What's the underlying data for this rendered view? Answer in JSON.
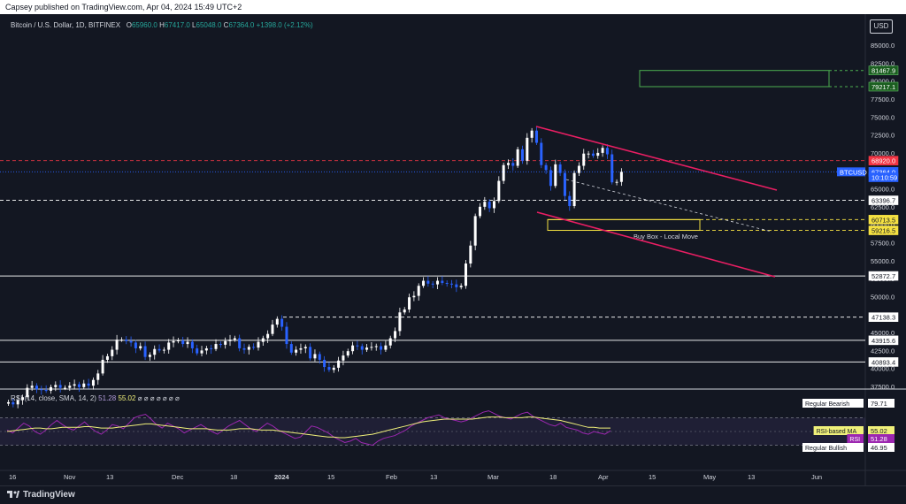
{
  "header": {
    "published": "Capsey published on TradingView.com, Apr 04, 2024 15:49 UTC+2"
  },
  "currency_button": "USD",
  "legend": {
    "symbol": "Bitcoin / U.S. Dollar, 1D, BITFINEX",
    "o_label": "O",
    "o": "65960.0",
    "h_label": "H",
    "h": "67417.0",
    "l_label": "L",
    "l": "65048.0",
    "c_label": "C",
    "c": "67364.0",
    "change": "+1398.0 (+2.12%)"
  },
  "rsi_legend": {
    "label": "RSI (14, close, SMA, 14, 2)",
    "rsi": "51.28",
    "ma": "55.02",
    "extras": "⌀ ⌀ ⌀ ⌀ ⌀ ⌀ ⌀"
  },
  "brand": "TradingView",
  "annotations": {
    "buy_box": "Buy Box - Local Move"
  },
  "price_axis": {
    "ticks": [
      "85000.0",
      "82500.0",
      "80000.0",
      "77500.0",
      "75000.0",
      "72500.0",
      "70000.0",
      "67500.0",
      "65000.0",
      "62500.0",
      "60000.0",
      "57500.0",
      "55000.0",
      "52500.0",
      "50000.0",
      "47500.0",
      "45000.0",
      "42500.0",
      "40000.0",
      "37500.0"
    ],
    "tags": [
      {
        "text": "81467.9",
        "value": 81467.9,
        "bg": "#1b5e20",
        "fg": "#ffffff",
        "border": "#66bb6a"
      },
      {
        "text": "79217.1",
        "value": 79217.1,
        "bg": "#1b5e20",
        "fg": "#ffffff",
        "border": "#66bb6a"
      },
      {
        "text": "68920.0",
        "value": 68920.0,
        "bg": "#f23645",
        "fg": "#ffffff",
        "border": "#f23645"
      },
      {
        "text": "67364.0",
        "value": 67364.0,
        "bg": "#2962ff",
        "fg": "#ffffff",
        "border": "#2962ff"
      },
      {
        "text": "10:10:59",
        "value": 66600.0,
        "bg": "#2962ff",
        "fg": "#ffffff",
        "border": "#2962ff"
      },
      {
        "text": "63396.7",
        "value": 63396.7,
        "bg": "#ffffff",
        "fg": "#131722",
        "border": "#ffffff"
      },
      {
        "text": "60713.5",
        "value": 60713.5,
        "bg": "#f5e142",
        "fg": "#131722",
        "border": "#f5e142"
      },
      {
        "text": "59216.5",
        "value": 59216.5,
        "bg": "#f5e142",
        "fg": "#131722",
        "border": "#f5e142"
      },
      {
        "text": "52872.7",
        "value": 52872.7,
        "bg": "#ffffff",
        "fg": "#131722",
        "border": "#ffffff"
      },
      {
        "text": "47138.3",
        "value": 47138.3,
        "bg": "#ffffff",
        "fg": "#131722",
        "border": "#ffffff"
      },
      {
        "text": "43915.6",
        "value": 43915.6,
        "bg": "#ffffff",
        "fg": "#131722",
        "border": "#ffffff"
      },
      {
        "text": "40893.4",
        "value": 40893.4,
        "bg": "#ffffff",
        "fg": "#131722",
        "border": "#ffffff"
      }
    ],
    "symbol_tag": "BTCUSD"
  },
  "rsi_axis": {
    "tags": [
      {
        "text": "79.71",
        "label": "Regular Bearish",
        "value": 79.71,
        "bg": "#ffffff",
        "fg": "#131722"
      },
      {
        "text": "55.02",
        "label": "RSI-based MA",
        "value": 55.02,
        "bg": "#f0f07a",
        "fg": "#131722"
      },
      {
        "text": "51.28",
        "label": "RSI",
        "value": 51.28,
        "bg": "#9c27b0",
        "fg": "#ffffff"
      },
      {
        "text": "46.95",
        "label": "Regular Bullish",
        "value": 46.95,
        "bg": "#ffffff",
        "fg": "#131722"
      }
    ]
  },
  "time_axis": [
    "16",
    "Nov",
    "13",
    "Dec",
    "18",
    "2024",
    "15",
    "Feb",
    "13",
    "Mar",
    "18",
    "Apr",
    "15",
    "May",
    "13",
    "Jun"
  ],
  "chart_data": {
    "type": "candlestick",
    "symbol": "Bitcoin / U.S. Dollar",
    "timeframe": "1D",
    "exchange": "BITFINEX",
    "price_range": [
      36800,
      87600
    ],
    "up_color": "#ffffff",
    "down_color": "#2962ff",
    "candles_approx_close": [
      35300,
      35000,
      35600,
      36000,
      37300,
      37600,
      37100,
      37000,
      36900,
      37400,
      37700,
      37300,
      37300,
      37600,
      37800,
      37400,
      37900,
      37600,
      38400,
      39300,
      41200,
      41700,
      42600,
      44000,
      44000,
      43800,
      43600,
      42800,
      43100,
      41600,
      41900,
      42700,
      42500,
      42600,
      43600,
      43800,
      43900,
      43400,
      43700,
      42800,
      42100,
      42500,
      42800,
      42700,
      43400,
      43300,
      43800,
      44000,
      44200,
      42800,
      42600,
      43000,
      42900,
      43700,
      44200,
      44800,
      46100,
      46900,
      45800,
      43400,
      42200,
      42600,
      42800,
      43000,
      41400,
      42000,
      41200,
      40200,
      39800,
      40100,
      41100,
      41800,
      42400,
      43200,
      43100,
      42600,
      42900,
      43000,
      43100,
      42600,
      43200,
      44200,
      45200,
      47800,
      48200,
      49900,
      50100,
      51500,
      52200,
      51800,
      51700,
      52200,
      51900,
      51800,
      51700,
      51300,
      51500,
      54600,
      57100,
      61200,
      62500,
      63200,
      62300,
      63300,
      66100,
      68300,
      68600,
      68200,
      70500,
      68900,
      72100,
      73100,
      71400,
      68300,
      67600,
      65400,
      68400,
      67200,
      64000,
      62600,
      67200,
      68200,
      69900,
      69900,
      69600,
      70000,
      70700,
      69800,
      65900,
      65960,
      67364
    ],
    "horizontal_levels": [
      {
        "value": 68920.0,
        "style": "dashed",
        "color": "#f23645"
      },
      {
        "value": 63396.7,
        "style": "dashed",
        "color": "#ffffff"
      },
      {
        "value": 60713.5,
        "style": "dashed",
        "color": "#f5e142"
      },
      {
        "value": 59216.5,
        "style": "dashed",
        "color": "#f5e142"
      },
      {
        "value": 52872.7,
        "style": "solid",
        "color": "#ffffff"
      },
      {
        "value": 47138.3,
        "style": "dashed",
        "color": "#ffffff"
      },
      {
        "value": 43915.6,
        "style": "solid",
        "color": "#ffffff"
      },
      {
        "value": 40893.4,
        "style": "solid",
        "color": "#ffffff"
      },
      {
        "value": 67364.0,
        "style": "dotted",
        "color": "#2962ff"
      }
    ],
    "zones": [
      {
        "label": "",
        "from": 79217.1,
        "to": 81467.9,
        "color": "#4caf50"
      },
      {
        "label": "Buy Box - Local Move",
        "from": 59216.5,
        "to": 60713.5,
        "color": "#f5e142"
      }
    ],
    "channel_color": "#e91e63",
    "rsi": {
      "params": "RSI (14, close, SMA, 14, 2)",
      "range": [
        0,
        100
      ],
      "band": [
        30,
        70
      ],
      "rsi_values_approx": [
        52,
        48,
        55,
        62,
        58,
        50,
        46,
        52,
        60,
        66,
        60,
        55,
        52,
        58,
        64,
        56,
        50,
        46,
        52,
        60,
        58,
        54,
        62,
        70,
        73,
        75,
        68,
        60,
        55,
        62,
        58,
        54,
        48,
        52,
        56,
        60,
        55,
        50,
        46,
        52,
        58,
        62,
        66,
        60,
        54,
        50,
        56,
        62,
        58,
        52,
        48,
        44,
        40,
        42,
        50,
        58,
        56,
        52,
        48,
        42,
        38,
        34,
        36,
        40,
        34,
        32,
        30,
        36,
        40,
        42,
        44,
        48,
        52,
        58,
        62,
        66,
        70,
        72,
        74,
        70,
        68,
        66,
        64,
        66,
        70,
        74,
        78,
        80,
        76,
        72,
        70,
        68,
        72,
        76,
        78,
        72,
        68,
        64,
        60,
        58,
        62,
        56,
        54,
        52,
        48,
        46,
        50,
        48,
        46,
        51
      ],
      "ma_values_approx": [
        50,
        51,
        52,
        53,
        54,
        55,
        55,
        54,
        54,
        55,
        56,
        56,
        56,
        56,
        57,
        57,
        56,
        55,
        55,
        55,
        56,
        57,
        58,
        59,
        60,
        61,
        61,
        60,
        59,
        58,
        57,
        56,
        55,
        54,
        54,
        54,
        54,
        53,
        52,
        52,
        52,
        53,
        54,
        54,
        54,
        53,
        52,
        52,
        52,
        51,
        50,
        49,
        48,
        47,
        46,
        45,
        44,
        43,
        42,
        42,
        41,
        41,
        42,
        43,
        44,
        45,
        46,
        48,
        50,
        52,
        54,
        56,
        58,
        60,
        62,
        64,
        65,
        66,
        67,
        68,
        68,
        68,
        68,
        68,
        68,
        69,
        70,
        71,
        71,
        71,
        70,
        70,
        70,
        70,
        71,
        71,
        70,
        69,
        68,
        67,
        66,
        64,
        62,
        60,
        58,
        56,
        56,
        55,
        55,
        55
      ]
    }
  }
}
